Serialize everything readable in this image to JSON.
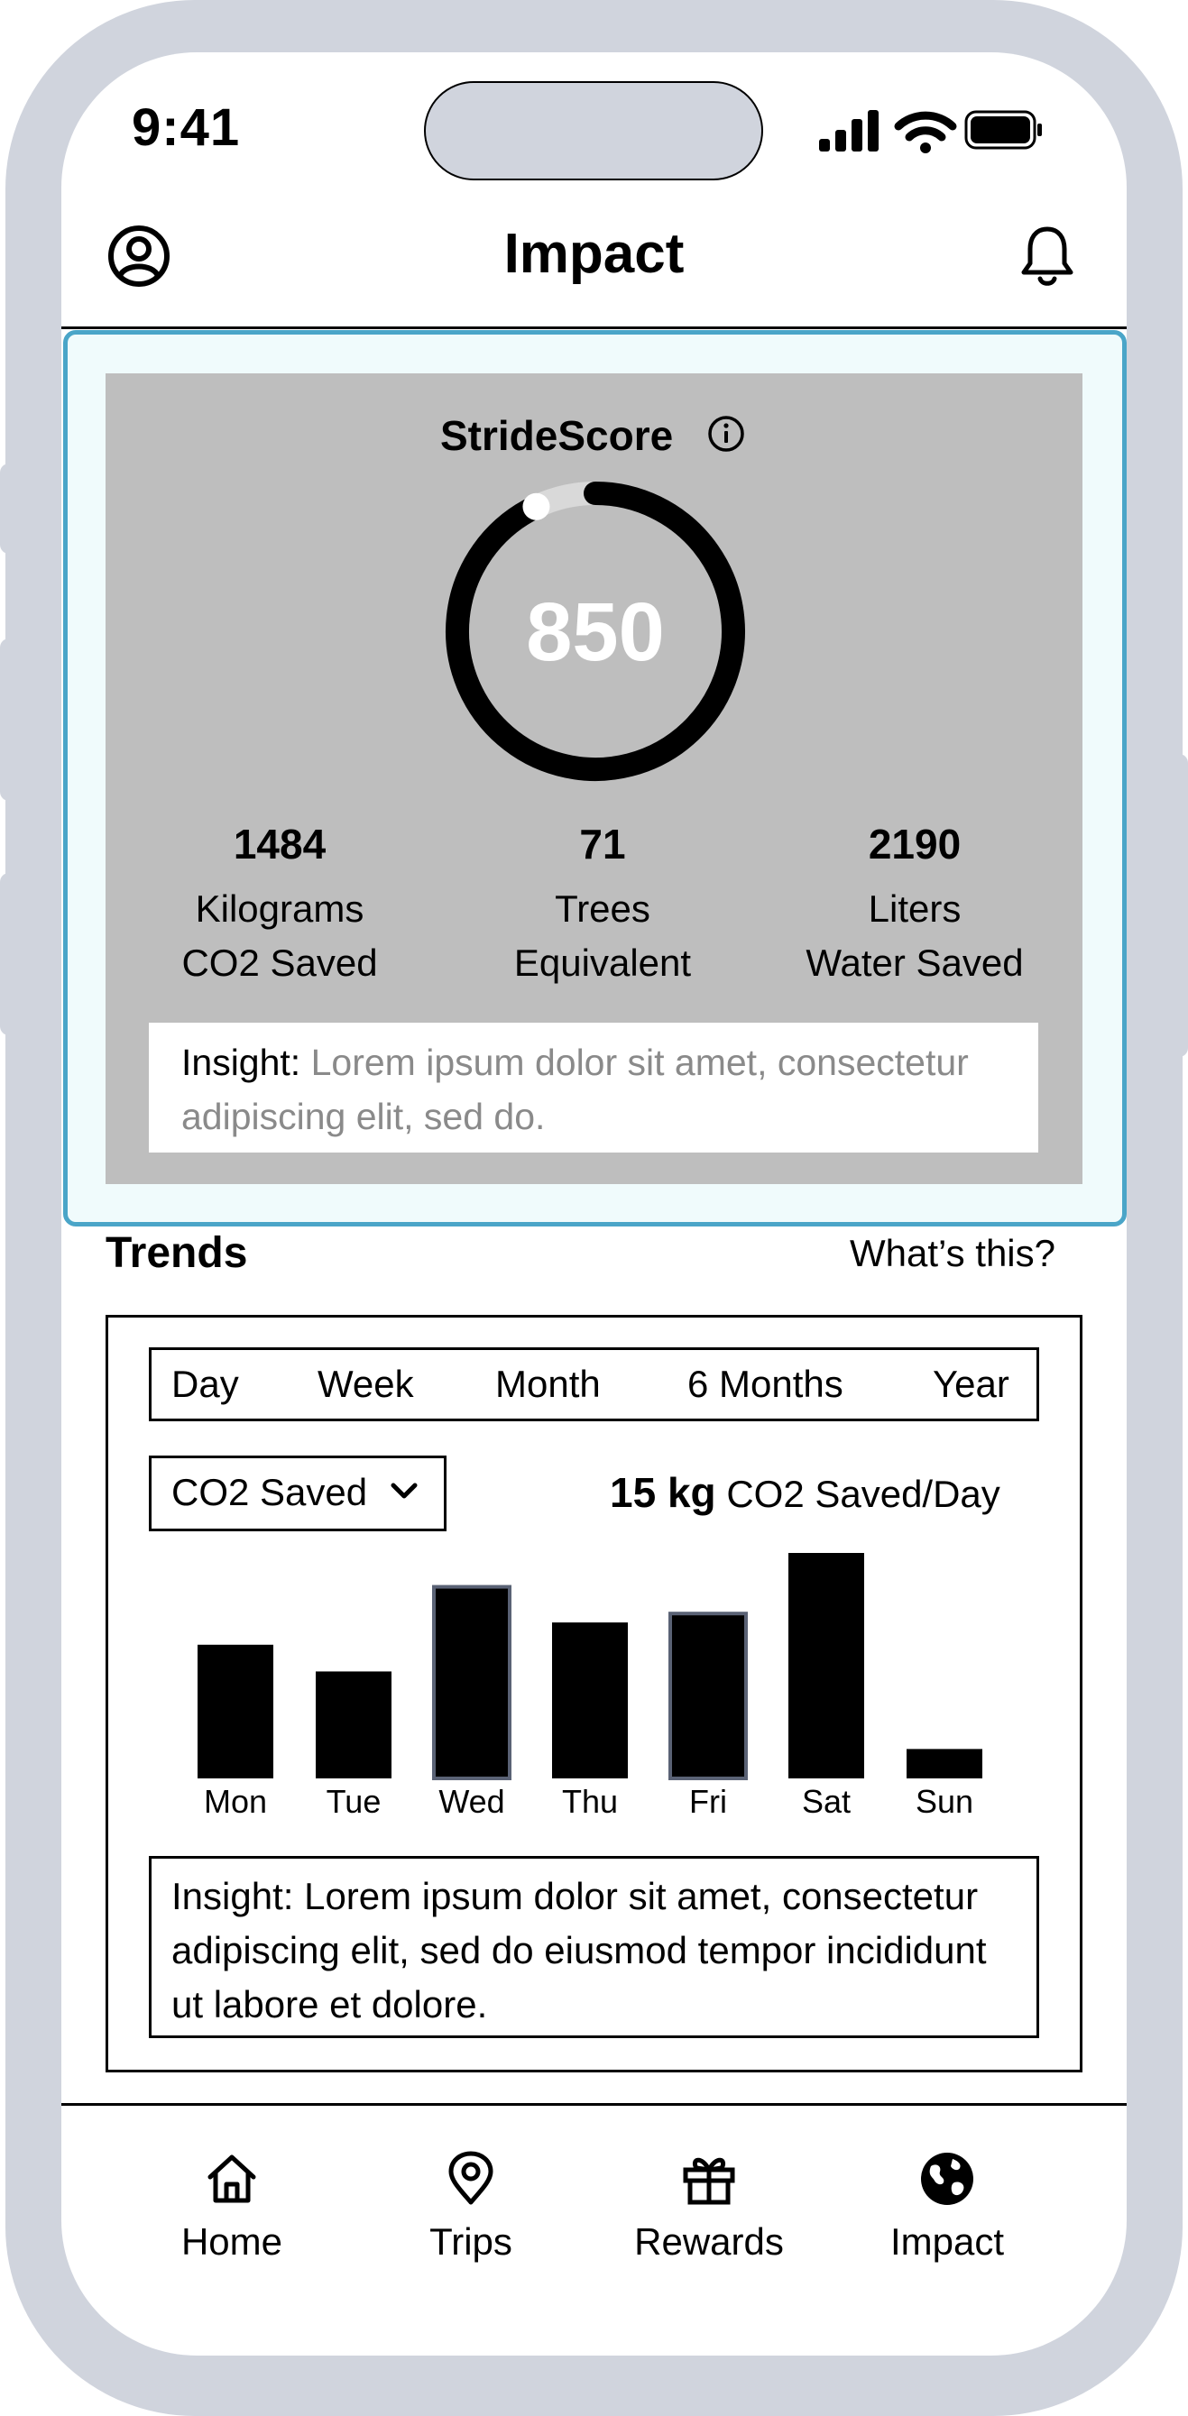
{
  "status_bar": {
    "time": "9:41"
  },
  "header": {
    "title": "Impact",
    "left_icon": "user-circle-icon",
    "right_icon": "bell-icon"
  },
  "score": {
    "title": "StrideScore",
    "value": "850",
    "progress_fraction": 0.92,
    "stats": [
      {
        "value": "1484",
        "line1": "Kilograms",
        "line2": "CO2 Saved"
      },
      {
        "value": "71",
        "line1": "Trees",
        "line2": "Equivalent"
      },
      {
        "value": "2190",
        "line1": "Liters",
        "line2": "Water Saved"
      }
    ],
    "insight_label": "Insight:",
    "insight_text": "Lorem ipsum dolor sit amet, consectetur adipiscing elit, sed do."
  },
  "trends": {
    "title": "Trends",
    "help_link": "What’s this?",
    "periods": [
      "Day",
      "Week",
      "Month",
      "6 Months",
      "Year"
    ],
    "metric_selected": "CO2 Saved",
    "rate_value": "15 kg",
    "rate_label": "CO2 Saved/Day",
    "insight": "Insight: Lorem ipsum dolor sit amet, consectetur adipiscing elit, sed do eiusmod tempor incididunt ut labore et dolore."
  },
  "chart_data": {
    "type": "bar",
    "categories": [
      "Mon",
      "Tue",
      "Wed",
      "Thu",
      "Fri",
      "Sat",
      "Sun"
    ],
    "values": [
      15,
      12,
      21.5,
      17.5,
      18.5,
      25.3,
      3.3
    ],
    "highlighted": [
      "Wed",
      "Fri"
    ],
    "title": "",
    "xlabel": "",
    "ylabel": "",
    "ylim": [
      0,
      25.3
    ]
  },
  "nav": {
    "items": [
      {
        "label": "Home",
        "icon": "home-icon"
      },
      {
        "label": "Trips",
        "icon": "map-pin-icon"
      },
      {
        "label": "Rewards",
        "icon": "gift-icon"
      },
      {
        "label": "Impact",
        "icon": "globe-icon"
      }
    ]
  },
  "colors": {
    "frame": "#d0d4dd",
    "card_border": "#4aa5c8",
    "card_bg": "#f0fbfc",
    "score_panel": "#bebebe",
    "highlight_bar_border": "#5a6275",
    "muted_text": "#8a8a8a"
  }
}
